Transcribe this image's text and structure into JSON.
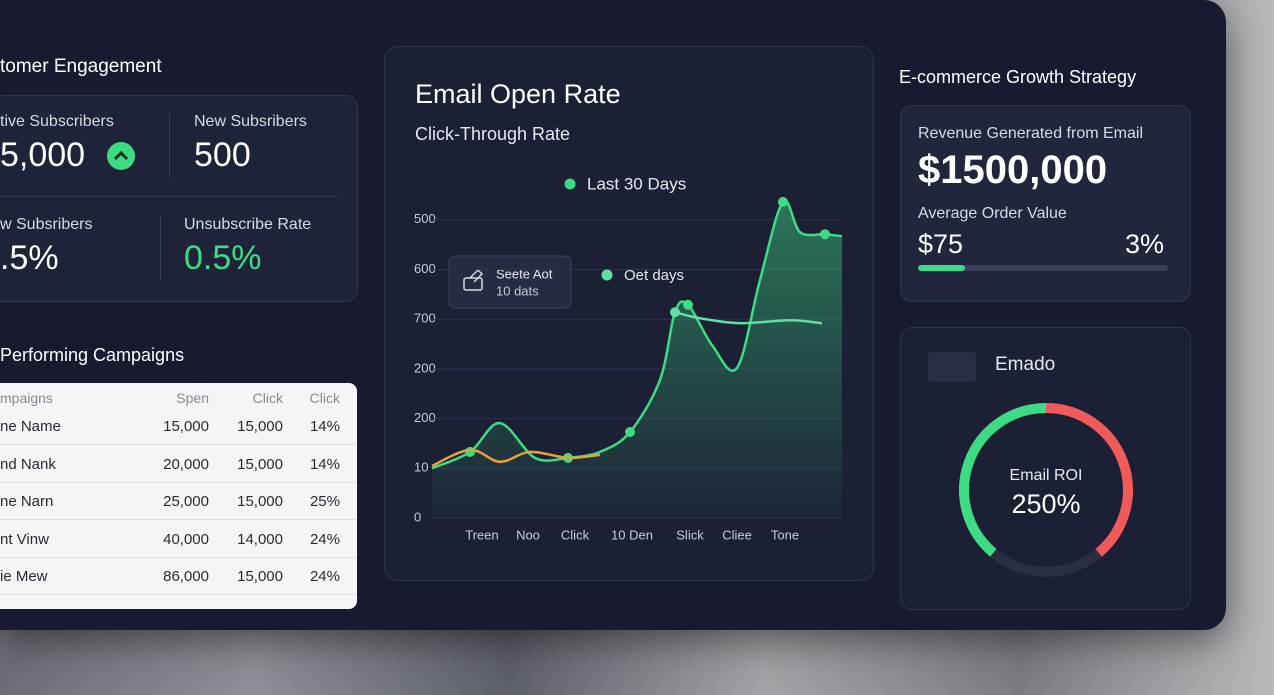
{
  "left_panel": {
    "title": "tomer Engagement",
    "metrics": [
      {
        "label": "tive Subscribers",
        "value": "5,000"
      },
      {
        "label": "New Subsribers",
        "value": "500"
      },
      {
        "label": "w Subsribers",
        "value": ".5%"
      },
      {
        "label": "Unsubscribe Rate",
        "value": "0.5%"
      }
    ]
  },
  "campaigns": {
    "title": "Performing Campaigns",
    "headers": [
      "mpaigns",
      "Spen",
      "Click",
      "Click"
    ],
    "rows": [
      [
        "ne Name",
        "15,000",
        "15,000",
        "14%"
      ],
      [
        "nd Nank",
        "20,000",
        "15,000",
        "14%"
      ],
      [
        "ne Narn",
        "25,000",
        "15,000",
        "25%"
      ],
      [
        "nt Vinw",
        "40,000",
        "14,000",
        "24%"
      ],
      [
        "ie Mew",
        "86,000",
        "15,000",
        "24%"
      ]
    ]
  },
  "chart_panel": {
    "title": "Email Open Rate",
    "subtitle": "Click-Through Rate",
    "tooltip": {
      "title": "Seete Aot",
      "text": "10 dats"
    }
  },
  "chart_data": {
    "type": "line",
    "xlim": [
      0,
      8.2
    ],
    "ylim": [
      0,
      6.5
    ],
    "xticks": [
      {
        "value": 1,
        "label": "Treen"
      },
      {
        "value": 1.92,
        "label": "Noo"
      },
      {
        "value": 2.86,
        "label": "Click"
      },
      {
        "value": 4,
        "label": "10 Den"
      },
      {
        "value": 5.16,
        "label": "Slick"
      },
      {
        "value": 6.1,
        "label": "Cliee"
      },
      {
        "value": 7.06,
        "label": "Tone"
      }
    ],
    "yticks": [
      0,
      {
        "value": 1,
        "label": "10"
      },
      {
        "value": 2,
        "label": "200"
      },
      {
        "value": 3,
        "label": "200"
      },
      {
        "value": 4,
        "label": "700"
      },
      {
        "value": 5,
        "label": "600"
      },
      {
        "value": 6,
        "label": "500"
      }
    ],
    "grid": true,
    "series": [
      {
        "name": "Last 30 Days",
        "color": "#3ddc84",
        "fill": true,
        "x": [
          0,
          0.76,
          1.36,
          2.06,
          2.72,
          3.36,
          3.96,
          4.56,
          4.86,
          5.12,
          5.6,
          6.1,
          6.56,
          7.02,
          7.36,
          7.86,
          8.2
        ],
        "values": [
          1.0,
          1.33,
          1.91,
          1.21,
          1.21,
          1.33,
          1.73,
          2.78,
          4.14,
          4.29,
          3.48,
          3.02,
          4.79,
          6.36,
          5.75,
          5.71,
          5.67
        ]
      },
      {
        "color": "#e8a23a",
        "x": [
          0,
          0.76,
          1.36,
          1.96,
          2.72,
          3.36
        ],
        "values": [
          1.05,
          1.37,
          1.13,
          1.33,
          1.21,
          1.27
        ]
      },
      {
        "name": "Oet days",
        "color": "#5fe0a0",
        "x": [
          4.86,
          5.36,
          6.16,
          7.16,
          7.8
        ],
        "values": [
          4.14,
          4.02,
          3.92,
          3.98,
          3.92
        ]
      }
    ]
  },
  "growth": {
    "title": "E-commerce Growth Strategy",
    "revenue_label": "Revenue Generated from Email",
    "revenue": "$1500,000",
    "aov_label": "Average Order Value",
    "aov": "$75",
    "rate": "3%",
    "roi_card_title": "Emado",
    "roi_label": "Email ROI",
    "roi": "250%"
  }
}
